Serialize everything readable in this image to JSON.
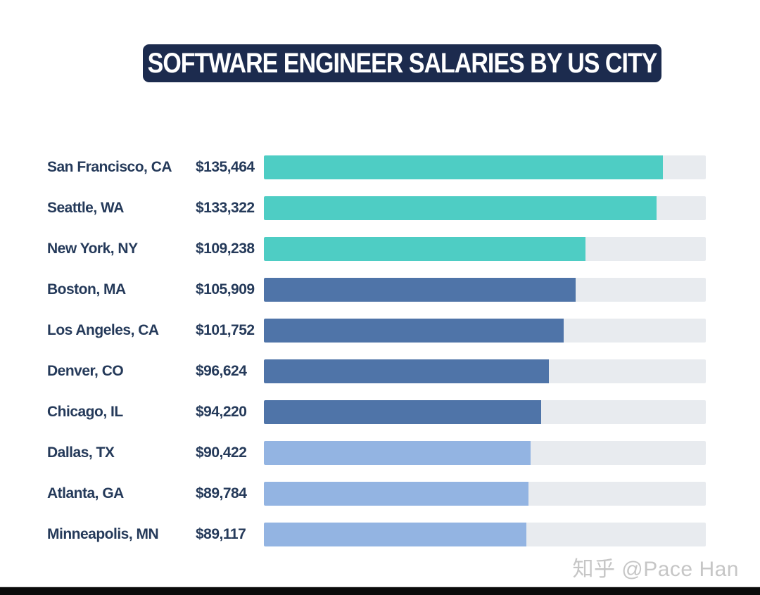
{
  "title_banner": {
    "background": "#1c2b4e",
    "text_color": "#ffffff"
  },
  "watermark": {
    "text": "知乎 @Pace Han",
    "color": "#c6c6c6"
  },
  "colors": {
    "teal": "#4ecdc4",
    "steel_blue": "#4f74a8",
    "light_blue": "#93b4e2",
    "bar_track": "#e8ebef",
    "label_text": "#253a5a"
  },
  "chart_data": {
    "type": "bar",
    "orientation": "horizontal",
    "title": "SOFTWARE ENGINEER SALARIES BY US CITY",
    "xlabel": "",
    "ylabel": "",
    "xlim": [
      0,
      150000
    ],
    "grid": false,
    "legend": false,
    "rows": [
      {
        "city": "San Francisco, CA",
        "value": 135464,
        "label": "$135,464",
        "color": "#4ecdc4"
      },
      {
        "city": "Seattle, WA",
        "value": 133322,
        "label": "$133,322",
        "color": "#4ecdc4"
      },
      {
        "city": "New York, NY",
        "value": 109238,
        "label": "$109,238",
        "color": "#4ecdc4"
      },
      {
        "city": "Boston, MA",
        "value": 105909,
        "label": "$105,909",
        "color": "#4f74a8"
      },
      {
        "city": "Los Angeles, CA",
        "value": 101752,
        "label": "$101,752",
        "color": "#4f74a8"
      },
      {
        "city": "Denver, CO",
        "value": 96624,
        "label": "$96,624",
        "color": "#4f74a8"
      },
      {
        "city": "Chicago, IL",
        "value": 94220,
        "label": "$94,220",
        "color": "#4f74a8"
      },
      {
        "city": "Dallas, TX",
        "value": 90422,
        "label": "$90,422",
        "color": "#93b4e2"
      },
      {
        "city": "Atlanta, GA",
        "value": 89784,
        "label": "$89,784",
        "color": "#93b4e2"
      },
      {
        "city": "Minneapolis, MN",
        "value": 89117,
        "label": "$89,117",
        "color": "#93b4e2"
      }
    ]
  }
}
